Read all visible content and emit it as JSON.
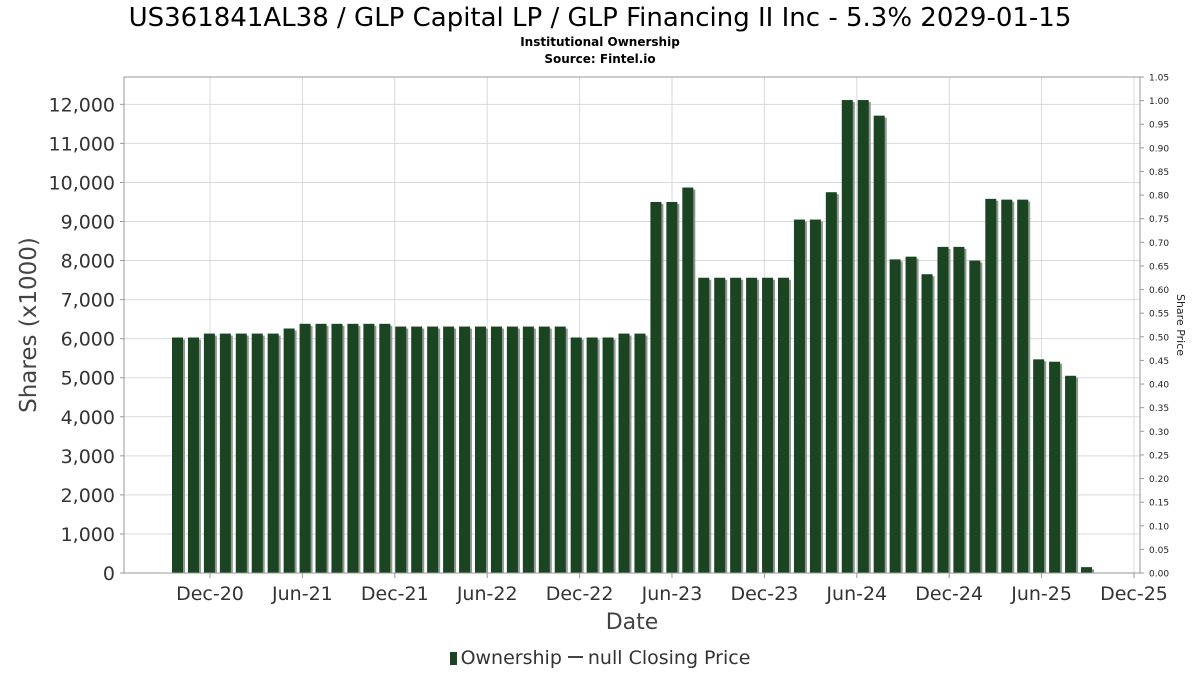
{
  "title": "US361841AL38 / GLP Capital LP / GLP Financing II Inc - 5.3% 2029-01-15",
  "subtitle": "Institutional Ownership",
  "source": "Source: Fintel.io",
  "legend": {
    "ownership_label": "Ownership",
    "price_label": "null Closing Price"
  },
  "colors": {
    "bar": "#1b4422",
    "bar_shadow": "#8e9a90",
    "grid": "#d9d9d9"
  },
  "chart_data": {
    "type": "bar",
    "title": "US361841AL38 / GLP Capital LP / GLP Financing II Inc - 5.3% 2029-01-15",
    "subtitle": "Institutional Ownership",
    "xlabel": "Date",
    "ylabel": "Shares (x1000)",
    "y2label": "Share Price",
    "ylim": [
      0,
      12700
    ],
    "y2lim": [
      0,
      1.05
    ],
    "grid": true,
    "legend_position": "bottom",
    "yticks": [
      "0",
      "1,000",
      "2,000",
      "3,000",
      "4,000",
      "5,000",
      "6,000",
      "7,000",
      "8,000",
      "9,000",
      "10,000",
      "11,000",
      "12,000"
    ],
    "y2ticks": [
      "0.00",
      "0.05",
      "0.10",
      "0.15",
      "0.20",
      "0.25",
      "0.30",
      "0.35",
      "0.40",
      "0.45",
      "0.50",
      "0.55",
      "0.60",
      "0.65",
      "0.70",
      "0.75",
      "0.80",
      "0.85",
      "0.90",
      "0.95",
      "1.00",
      "1.05"
    ],
    "xticks": [
      "Dec-20",
      "Jun-21",
      "Dec-21",
      "Jun-22",
      "Dec-22",
      "Jun-23",
      "Dec-23",
      "Jun-24",
      "Dec-24",
      "Jun-25",
      "Dec-25"
    ],
    "series": [
      {
        "name": "Ownership",
        "values": [
          6030,
          6030,
          6130,
          6130,
          6130,
          6130,
          6130,
          6260,
          6380,
          6380,
          6380,
          6380,
          6380,
          6380,
          6310,
          6310,
          6310,
          6310,
          6310,
          6310,
          6310,
          6310,
          6310,
          6310,
          6310,
          6030,
          6030,
          6030,
          6130,
          6130,
          9500,
          9500,
          9870,
          7560,
          7560,
          7560,
          7560,
          7560,
          7560,
          9050,
          9050,
          9750,
          12110,
          12110,
          11710,
          8030,
          8100,
          7650,
          8350,
          8350,
          8000,
          9580,
          9560,
          9560,
          5470,
          5410,
          5050,
          150
        ]
      },
      {
        "name": "null Closing Price",
        "values": []
      }
    ]
  }
}
